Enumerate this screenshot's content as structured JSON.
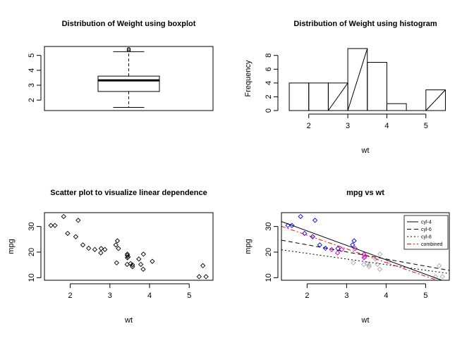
{
  "chart_data": [
    {
      "type": "boxplot",
      "title": "Distribution of Weight using boxplot",
      "ylim": [
        1.3,
        5.6
      ],
      "yticks": [
        2,
        3,
        4,
        5
      ],
      "stats": {
        "min": 1.513,
        "q1": 2.58,
        "median": 3.325,
        "q3": 3.61,
        "max": 5.25,
        "outliers": [
          5.345,
          5.424
        ]
      }
    },
    {
      "type": "histogram",
      "title": "Distribution of Weight using histogram",
      "xlabel": "wt",
      "ylabel": "Frequency",
      "xlim": [
        1.3,
        5.6
      ],
      "ylim": [
        0,
        9.3
      ],
      "xticks": [
        2,
        3,
        4,
        5
      ],
      "yticks": [
        0,
        2,
        4,
        6,
        8
      ],
      "bins": [
        {
          "from": 1.5,
          "to": 2.0,
          "count": 4
        },
        {
          "from": 2.0,
          "to": 2.5,
          "count": 4
        },
        {
          "from": 2.5,
          "to": 3.0,
          "count": 4
        },
        {
          "from": 3.0,
          "to": 3.5,
          "count": 9
        },
        {
          "from": 3.5,
          "to": 4.0,
          "count": 7
        },
        {
          "from": 4.0,
          "to": 4.5,
          "count": 1
        },
        {
          "from": 4.5,
          "to": 5.0,
          "count": 0
        },
        {
          "from": 5.0,
          "to": 5.5,
          "count": 3
        }
      ],
      "diagonal_bins": [
        2,
        3,
        7
      ]
    },
    {
      "type": "scatter",
      "title": "Scatter plot to visualize linear dependence",
      "xlabel": "wt",
      "ylabel": "mpg",
      "xlim": [
        1.35,
        5.6
      ],
      "ylim": [
        9,
        35.4
      ],
      "xticks": [
        2,
        3,
        4,
        5
      ],
      "yticks": [
        10,
        20,
        30
      ],
      "points": [
        [
          2.62,
          21.0
        ],
        [
          2.875,
          21.0
        ],
        [
          2.32,
          22.8
        ],
        [
          3.215,
          21.4
        ],
        [
          3.44,
          18.7
        ],
        [
          3.46,
          18.1
        ],
        [
          3.57,
          14.3
        ],
        [
          3.19,
          24.4
        ],
        [
          3.15,
          22.8
        ],
        [
          3.44,
          19.2
        ],
        [
          3.44,
          17.8
        ],
        [
          4.07,
          16.4
        ],
        [
          3.73,
          17.3
        ],
        [
          3.78,
          15.2
        ],
        [
          5.25,
          10.4
        ],
        [
          5.424,
          10.4
        ],
        [
          5.345,
          14.7
        ],
        [
          2.2,
          32.4
        ],
        [
          1.615,
          30.4
        ],
        [
          1.835,
          33.9
        ],
        [
          2.465,
          21.5
        ],
        [
          3.52,
          15.5
        ],
        [
          3.435,
          15.2
        ],
        [
          3.84,
          13.3
        ],
        [
          3.845,
          19.2
        ],
        [
          1.935,
          27.3
        ],
        [
          2.14,
          26.0
        ],
        [
          1.513,
          30.4
        ],
        [
          3.17,
          15.8
        ],
        [
          2.77,
          19.7
        ],
        [
          3.57,
          15.0
        ],
        [
          2.78,
          21.4
        ]
      ]
    },
    {
      "type": "scatter",
      "title": "mpg vs wt",
      "xlabel": "wt",
      "ylabel": "mpg",
      "xlim": [
        1.35,
        5.6
      ],
      "ylim": [
        9,
        35.4
      ],
      "xticks": [
        2,
        3,
        4,
        5
      ],
      "yticks": [
        10,
        20,
        30
      ],
      "points": [
        {
          "x": 2.62,
          "y": 21.0,
          "cyl": 6
        },
        {
          "x": 2.875,
          "y": 21.0,
          "cyl": 6
        },
        {
          "x": 2.32,
          "y": 22.8,
          "cyl": 4
        },
        {
          "x": 3.215,
          "y": 21.4,
          "cyl": 6
        },
        {
          "x": 3.44,
          "y": 18.7,
          "cyl": 8
        },
        {
          "x": 3.46,
          "y": 18.1,
          "cyl": 6
        },
        {
          "x": 3.57,
          "y": 14.3,
          "cyl": 8
        },
        {
          "x": 3.19,
          "y": 24.4,
          "cyl": 4
        },
        {
          "x": 3.15,
          "y": 22.8,
          "cyl": 4
        },
        {
          "x": 3.44,
          "y": 19.2,
          "cyl": 6
        },
        {
          "x": 3.44,
          "y": 17.8,
          "cyl": 6
        },
        {
          "x": 4.07,
          "y": 16.4,
          "cyl": 8
        },
        {
          "x": 3.73,
          "y": 17.3,
          "cyl": 8
        },
        {
          "x": 3.78,
          "y": 15.2,
          "cyl": 8
        },
        {
          "x": 5.25,
          "y": 10.4,
          "cyl": 8
        },
        {
          "x": 5.424,
          "y": 10.4,
          "cyl": 8
        },
        {
          "x": 5.345,
          "y": 14.7,
          "cyl": 8
        },
        {
          "x": 2.2,
          "y": 32.4,
          "cyl": 4
        },
        {
          "x": 1.615,
          "y": 30.4,
          "cyl": 4
        },
        {
          "x": 1.835,
          "y": 33.9,
          "cyl": 4
        },
        {
          "x": 2.465,
          "y": 21.5,
          "cyl": 4
        },
        {
          "x": 3.52,
          "y": 15.5,
          "cyl": 8
        },
        {
          "x": 3.435,
          "y": 15.2,
          "cyl": 8
        },
        {
          "x": 3.84,
          "y": 13.3,
          "cyl": 8
        },
        {
          "x": 3.845,
          "y": 19.2,
          "cyl": 8
        },
        {
          "x": 1.935,
          "y": 27.3,
          "cyl": 4
        },
        {
          "x": 2.14,
          "y": 26.0,
          "cyl": 4
        },
        {
          "x": 1.513,
          "y": 30.4,
          "cyl": 4
        },
        {
          "x": 3.17,
          "y": 15.8,
          "cyl": 8
        },
        {
          "x": 2.77,
          "y": 19.7,
          "cyl": 6
        },
        {
          "x": 3.57,
          "y": 15.0,
          "cyl": 8
        },
        {
          "x": 2.78,
          "y": 21.4,
          "cyl": 4
        }
      ],
      "point_colors": {
        "4": "#0000ff",
        "6": "#cc00cc",
        "8": "#aaaaaa"
      },
      "lines": [
        {
          "name": "cyl-4",
          "intercept": 39.57,
          "slope": -5.647,
          "dash": "solid",
          "color": "#000000"
        },
        {
          "name": "cyl-6",
          "intercept": 28.41,
          "slope": -2.78,
          "dash": "dashed",
          "color": "#000000"
        },
        {
          "name": "cyl-8",
          "intercept": 23.87,
          "slope": -2.19,
          "dash": "dotted",
          "color": "#000000"
        },
        {
          "name": "combined",
          "intercept": 37.29,
          "slope": -5.344,
          "dash": "dashdot",
          "color": "#ff0000"
        }
      ],
      "legend_position": "top-right"
    }
  ]
}
